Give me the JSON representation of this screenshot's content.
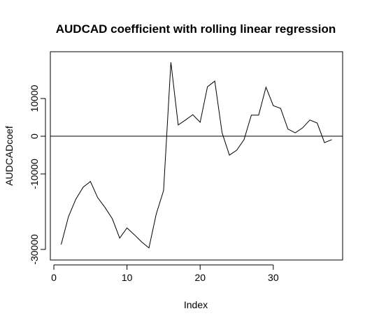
{
  "chart_data": {
    "type": "line",
    "title": "AUDCAD coefficient with rolling linear regression",
    "x_label": "Index",
    "y_label": "AUDCADcoef",
    "x": [
      1,
      2,
      3,
      4,
      5,
      6,
      7,
      8,
      9,
      10,
      11,
      12,
      13,
      14,
      15,
      16,
      17,
      18,
      19,
      20,
      21,
      22,
      23,
      24,
      25,
      26,
      27,
      28,
      29,
      30,
      31,
      32,
      33,
      34,
      35,
      36,
      37,
      38
    ],
    "series": [
      {
        "color": "#000000",
        "values": [
          -28700,
          -21300,
          -16700,
          -13500,
          -12000,
          -16300,
          -18900,
          -21900,
          -27000,
          -24300,
          -26100,
          -28000,
          -29600,
          -20600,
          -14400,
          19600,
          3000,
          4300,
          5700,
          3700,
          13100,
          14600,
          900,
          -5000,
          -3700,
          -900,
          5600,
          5600,
          13000,
          8100,
          7400,
          1900,
          900,
          2200,
          4300,
          3500,
          -1700,
          -900
        ]
      }
    ],
    "xlim": [
      -0.48,
      39.48
    ],
    "xticks": [
      0,
      10,
      20,
      30
    ],
    "ylim": [
      -32800,
      22400
    ],
    "yticks": [
      -30000,
      -10000,
      0,
      10000
    ],
    "hline": 0
  }
}
